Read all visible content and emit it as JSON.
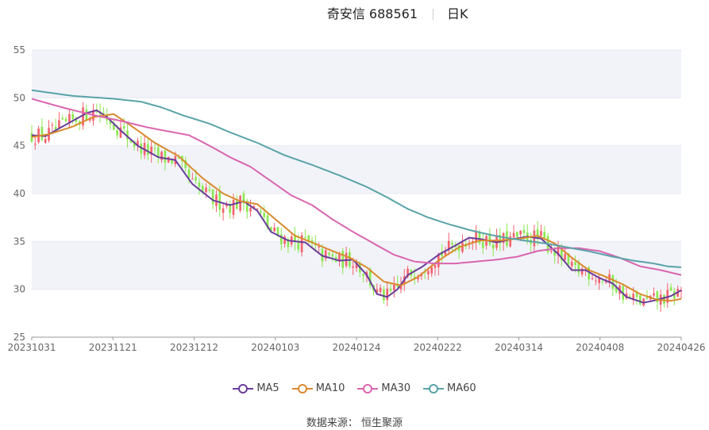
{
  "header": {
    "title": "奇安信 688561",
    "period": "日K"
  },
  "source": "数据来源： 恒生聚源",
  "colors": {
    "up": "#f4616e",
    "down": "#8ae84f",
    "ma5": "#6a3d9a",
    "ma10": "#d98a2f",
    "ma30": "#d965b0",
    "ma60": "#5aa3a8",
    "band": "#f1f3f9",
    "axis": "#666666"
  },
  "chart_data": {
    "type": "candlestick",
    "ylim": [
      25,
      55
    ],
    "yticks": [
      "25",
      "30",
      "35",
      "40",
      "45",
      "50",
      "55"
    ],
    "xticks": [
      "20231031",
      "20231121",
      "20231212",
      "20240103",
      "20240124",
      "20240222",
      "20240314",
      "20240408",
      "20240426"
    ],
    "legend_position": "bottom",
    "series": [
      {
        "name": "MA5",
        "color": "#6a3d9a",
        "keys": [
          [
            0,
            46.1
          ],
          [
            4,
            46.0
          ],
          [
            10,
            47.2
          ],
          [
            16,
            48.4
          ],
          [
            19,
            48.7
          ],
          [
            22,
            48.0
          ],
          [
            26,
            46.6
          ],
          [
            31,
            45.0
          ],
          [
            37,
            43.8
          ],
          [
            42,
            43.5
          ],
          [
            47,
            41.0
          ],
          [
            53,
            39.3
          ],
          [
            58,
            38.8
          ],
          [
            62,
            39.2
          ],
          [
            66,
            38.2
          ],
          [
            70,
            36.0
          ],
          [
            75,
            35.1
          ],
          [
            80,
            34.9
          ],
          [
            85,
            33.5
          ],
          [
            90,
            33.0
          ],
          [
            94,
            33.1
          ],
          [
            98,
            31.5
          ],
          [
            101,
            29.5
          ],
          [
            104,
            29.2
          ],
          [
            107,
            30.0
          ],
          [
            110,
            31.5
          ],
          [
            114,
            32.3
          ],
          [
            119,
            33.6
          ],
          [
            124,
            34.6
          ],
          [
            128,
            35.4
          ],
          [
            132,
            35.2
          ],
          [
            136,
            34.9
          ],
          [
            140,
            35.2
          ],
          [
            145,
            35.5
          ],
          [
            149,
            35.3
          ],
          [
            154,
            33.7
          ],
          [
            158,
            32.0
          ],
          [
            162,
            32.0
          ],
          [
            166,
            31.2
          ],
          [
            170,
            30.6
          ],
          [
            174,
            29.2
          ],
          [
            179,
            28.6
          ],
          [
            183,
            28.9
          ],
          [
            187,
            29.3
          ],
          [
            190,
            29.9
          ]
        ]
      },
      {
        "name": "MA10",
        "color": "#d98a2f",
        "keys": [
          [
            0,
            45.9
          ],
          [
            5,
            46.2
          ],
          [
            12,
            47.0
          ],
          [
            18,
            48.0
          ],
          [
            24,
            48.3
          ],
          [
            29,
            47.1
          ],
          [
            36,
            45.3
          ],
          [
            43,
            43.9
          ],
          [
            50,
            41.6
          ],
          [
            56,
            40.0
          ],
          [
            61,
            39.2
          ],
          [
            66,
            38.9
          ],
          [
            71,
            37.4
          ],
          [
            77,
            35.6
          ],
          [
            82,
            34.9
          ],
          [
            88,
            34.0
          ],
          [
            93,
            33.3
          ],
          [
            98,
            32.3
          ],
          [
            103,
            30.8
          ],
          [
            108,
            30.4
          ],
          [
            113,
            31.3
          ],
          [
            119,
            33.0
          ],
          [
            125,
            34.4
          ],
          [
            131,
            35.1
          ],
          [
            137,
            35.1
          ],
          [
            143,
            35.3
          ],
          [
            148,
            35.6
          ],
          [
            153,
            34.8
          ],
          [
            158,
            33.3
          ],
          [
            163,
            32.0
          ],
          [
            168,
            31.3
          ],
          [
            173,
            30.5
          ],
          [
            178,
            29.5
          ],
          [
            183,
            28.9
          ],
          [
            187,
            28.8
          ],
          [
            190,
            29.0
          ]
        ]
      },
      {
        "name": "MA30",
        "color": "#d965b0",
        "keys": [
          [
            0,
            49.9
          ],
          [
            10,
            48.9
          ],
          [
            18,
            48.2
          ],
          [
            26,
            47.6
          ],
          [
            34,
            46.9
          ],
          [
            40,
            46.5
          ],
          [
            46,
            46.1
          ],
          [
            52,
            45.0
          ],
          [
            58,
            43.8
          ],
          [
            64,
            42.8
          ],
          [
            70,
            41.3
          ],
          [
            76,
            39.8
          ],
          [
            82,
            38.8
          ],
          [
            88,
            37.3
          ],
          [
            94,
            36.0
          ],
          [
            100,
            34.8
          ],
          [
            106,
            33.6
          ],
          [
            112,
            32.9
          ],
          [
            118,
            32.7
          ],
          [
            124,
            32.7
          ],
          [
            130,
            32.9
          ],
          [
            136,
            33.1
          ],
          [
            142,
            33.4
          ],
          [
            148,
            34.0
          ],
          [
            154,
            34.3
          ],
          [
            160,
            34.3
          ],
          [
            166,
            34.0
          ],
          [
            172,
            33.3
          ],
          [
            178,
            32.4
          ],
          [
            184,
            32.0
          ],
          [
            190,
            31.5
          ]
        ]
      },
      {
        "name": "MA60",
        "color": "#5aa3a8",
        "keys": [
          [
            0,
            50.8
          ],
          [
            12,
            50.2
          ],
          [
            24,
            49.9
          ],
          [
            32,
            49.6
          ],
          [
            38,
            49.0
          ],
          [
            44,
            48.2
          ],
          [
            52,
            47.3
          ],
          [
            58,
            46.4
          ],
          [
            66,
            45.3
          ],
          [
            74,
            44.0
          ],
          [
            82,
            43.0
          ],
          [
            90,
            41.9
          ],
          [
            98,
            40.7
          ],
          [
            104,
            39.6
          ],
          [
            110,
            38.4
          ],
          [
            116,
            37.5
          ],
          [
            122,
            36.8
          ],
          [
            128,
            36.2
          ],
          [
            134,
            35.7
          ],
          [
            140,
            35.3
          ],
          [
            146,
            35.0
          ],
          [
            152,
            34.7
          ],
          [
            158,
            34.3
          ],
          [
            164,
            33.9
          ],
          [
            170,
            33.4
          ],
          [
            176,
            33.0
          ],
          [
            182,
            32.7
          ],
          [
            186,
            32.4
          ],
          [
            190,
            32.3
          ]
        ]
      }
    ]
  }
}
